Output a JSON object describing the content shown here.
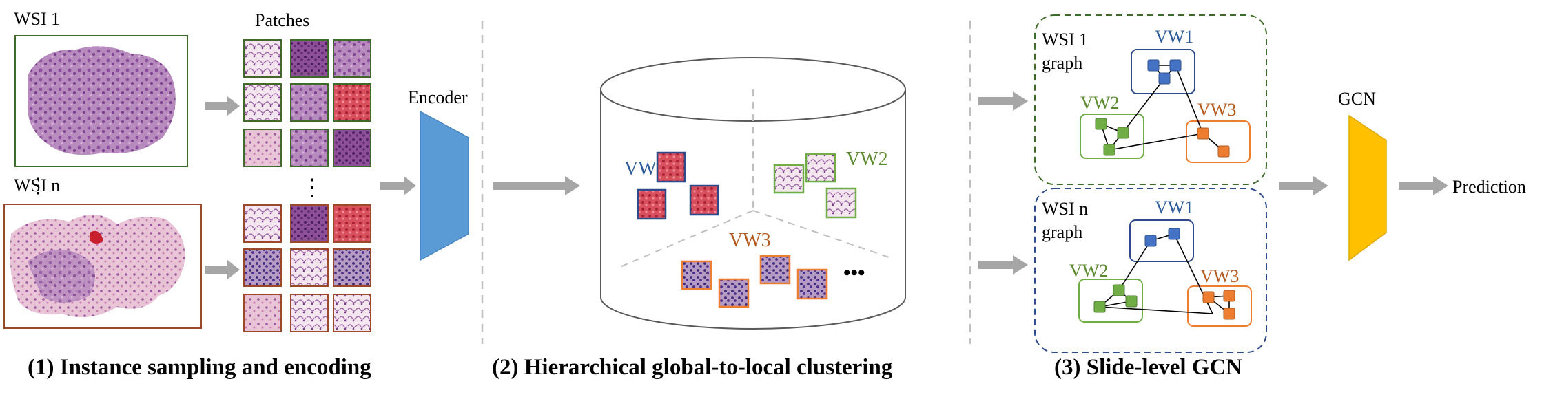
{
  "colors": {
    "wsi1_border": "#3f6b2a",
    "wsin_border": "#9a4a2a",
    "encoder": "#5b9bd5",
    "gcn": "#ffc000",
    "arrow": "#a6a6a6",
    "vw1": "#2e5c9a",
    "vw2": "#5c8a2e",
    "vw3": "#b35a1f",
    "node_blue": "#4472c4",
    "node_green": "#70ad47",
    "node_orange": "#ed7d31",
    "graph1_border": "#3f6b2a",
    "graphn_border": "#2e4a8a",
    "divider": "#bfbfbf"
  },
  "stage1": {
    "wsi1_label": "WSI 1",
    "wsin_label": "WSI n",
    "patches_label": "Patches",
    "encoder_label": "Encoder",
    "caption": "(1) Instance sampling and encoding"
  },
  "stage2": {
    "vw1_label": "VW1",
    "vw2_label": "VW2",
    "vw3_label": "VW3",
    "more": "•••",
    "caption": "(2) Hierarchical global-to-local clustering"
  },
  "stage3": {
    "graph1": {
      "title_line1": "WSI 1",
      "title_line2": "graph",
      "vw1": "VW1",
      "vw2": "VW2",
      "vw3": "VW3"
    },
    "graphn": {
      "title_line1": "WSI n",
      "title_line2": "graph",
      "vw1": "VW1",
      "vw2": "VW2",
      "vw3": "VW3"
    },
    "gcn_label": "GCN",
    "prediction_label": "Prediction",
    "caption": "(3) Slide-level GCN"
  }
}
